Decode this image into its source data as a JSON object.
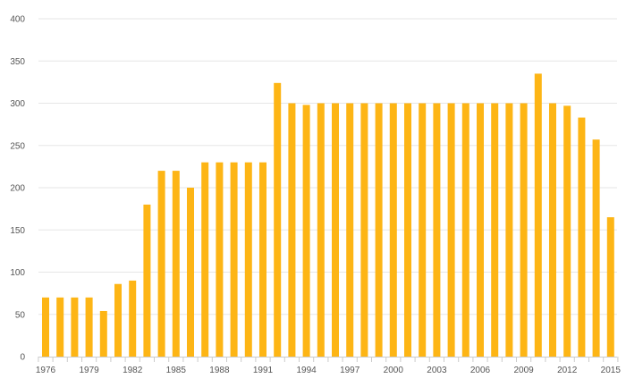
{
  "chart_data": {
    "type": "bar",
    "title": "",
    "xlabel": "",
    "ylabel": "",
    "ylim": [
      0,
      400
    ],
    "yticks": [
      0,
      50,
      100,
      150,
      200,
      250,
      300,
      350,
      400
    ],
    "xtick_labels": [
      "1976",
      "1979",
      "1982",
      "1985",
      "1988",
      "1991",
      "1994",
      "1997",
      "2000",
      "2003",
      "2006",
      "2009",
      "2012",
      "2015"
    ],
    "grid": true,
    "bar_color": "#FDB515",
    "categories": [
      "1976",
      "1977",
      "1978",
      "1979",
      "1980",
      "1981",
      "1982",
      "1983",
      "1984",
      "1985",
      "1986",
      "1987",
      "1988",
      "1989",
      "1990",
      "1991",
      "1992",
      "1993",
      "1994",
      "1995",
      "1996",
      "1997",
      "1998",
      "1999",
      "2000",
      "2001",
      "2002",
      "2003",
      "2004",
      "2005",
      "2006",
      "2007",
      "2008",
      "2009",
      "2010",
      "2011",
      "2012",
      "2013",
      "2014",
      "2015"
    ],
    "values": [
      70,
      70,
      70,
      70,
      54,
      86,
      90,
      180,
      220,
      220,
      200,
      230,
      230,
      230,
      230,
      230,
      324,
      300,
      298,
      300,
      300,
      300,
      300,
      300,
      300,
      300,
      300,
      300,
      300,
      300,
      300,
      300,
      300,
      300,
      335,
      300,
      297,
      283,
      257,
      165
    ]
  }
}
